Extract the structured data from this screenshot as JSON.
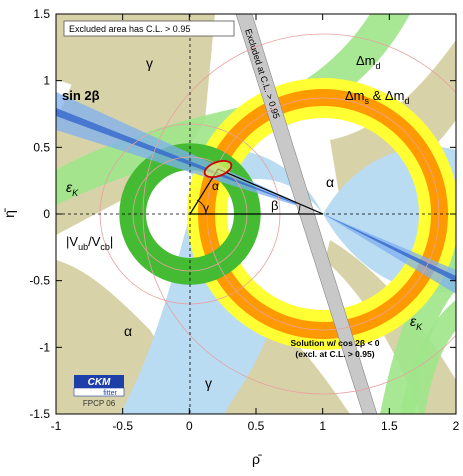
{
  "chart_data": {
    "type": "scatter",
    "title": "",
    "xlabel": "ρ̄",
    "ylabel": "η̄",
    "xlim": [
      -1,
      2
    ],
    "ylim": [
      -1.5,
      1.5
    ],
    "xticks": [
      -1,
      -0.5,
      0,
      0.5,
      1,
      1.5,
      2
    ],
    "yticks": [
      -1.5,
      -1,
      -0.5,
      0,
      0.5,
      1,
      1.5
    ],
    "xtick_labels": [
      "-1",
      "-0.5",
      "0",
      "0.5",
      "1",
      "1.5",
      "2"
    ],
    "ytick_labels": [
      "-1.5",
      "-1",
      "-0.5",
      "0",
      "0.5",
      "1",
      "1.5"
    ],
    "grid": false,
    "apex": {
      "rho": 0.21,
      "eta": 0.34
    },
    "triangle": [
      [
        0,
        0
      ],
      [
        1,
        0
      ],
      [
        0.21,
        0.34
      ]
    ],
    "constraints": [
      {
        "label": "Δm_d",
        "kind": "annulus",
        "center": [
          1,
          0
        ],
        "r_inner": 0.72,
        "r_outer": 1.02,
        "color": "#ffff33"
      },
      {
        "label": "Δm_s & Δm_d",
        "kind": "annulus",
        "center": [
          1,
          0
        ],
        "r_inner": 0.81,
        "r_outer": 0.94,
        "color": "#ff9900"
      },
      {
        "label": "|V_ub/V_cb|",
        "kind": "annulus",
        "center": [
          0,
          0
        ],
        "r_inner": 0.33,
        "r_outer": 0.53,
        "color": "#44bb33"
      },
      {
        "label": "sin 2β",
        "kind": "bands_through",
        "pivot": [
          1,
          0
        ],
        "slopes": [
          -0.43,
          -0.71
        ],
        "color": "#7fb0f0"
      },
      {
        "label": "α",
        "kind": "regions",
        "color": "#d8d2a8"
      },
      {
        "label": "γ",
        "kind": "wedges",
        "color": "#d8d2a8"
      },
      {
        "label": "ε_K",
        "kind": "hyperbolic_band",
        "color": "#9fe68a"
      }
    ],
    "annotations": {
      "excluded_area": "Excluded area has C.L. > 0.95",
      "excluded_band": "Excluded at C.L. > 0.95",
      "solution_line1": "Solution w/ cos 2β < 0",
      "solution_line2": "(excl. at C.L. > 0.95)"
    },
    "labels": {
      "sin2beta": "sin 2β",
      "eps_left": "ε",
      "eps_right": "ε",
      "eps_sub": "K",
      "vub": "|V",
      "vub_sub1": "ub",
      "vub_mid": "/V",
      "vub_sub2": "cb",
      "vub_end": "|",
      "dmd": "Δm",
      "dmd_sub": "d",
      "dms1": "Δm",
      "dms1_sub": "s",
      "dms_amp": " & Δm",
      "dms2_sub": "d",
      "alpha": "α",
      "beta": "β",
      "gamma": "γ"
    },
    "logo": {
      "name": "CKM",
      "sub": "fitter",
      "tag": "FPCP 06"
    }
  }
}
